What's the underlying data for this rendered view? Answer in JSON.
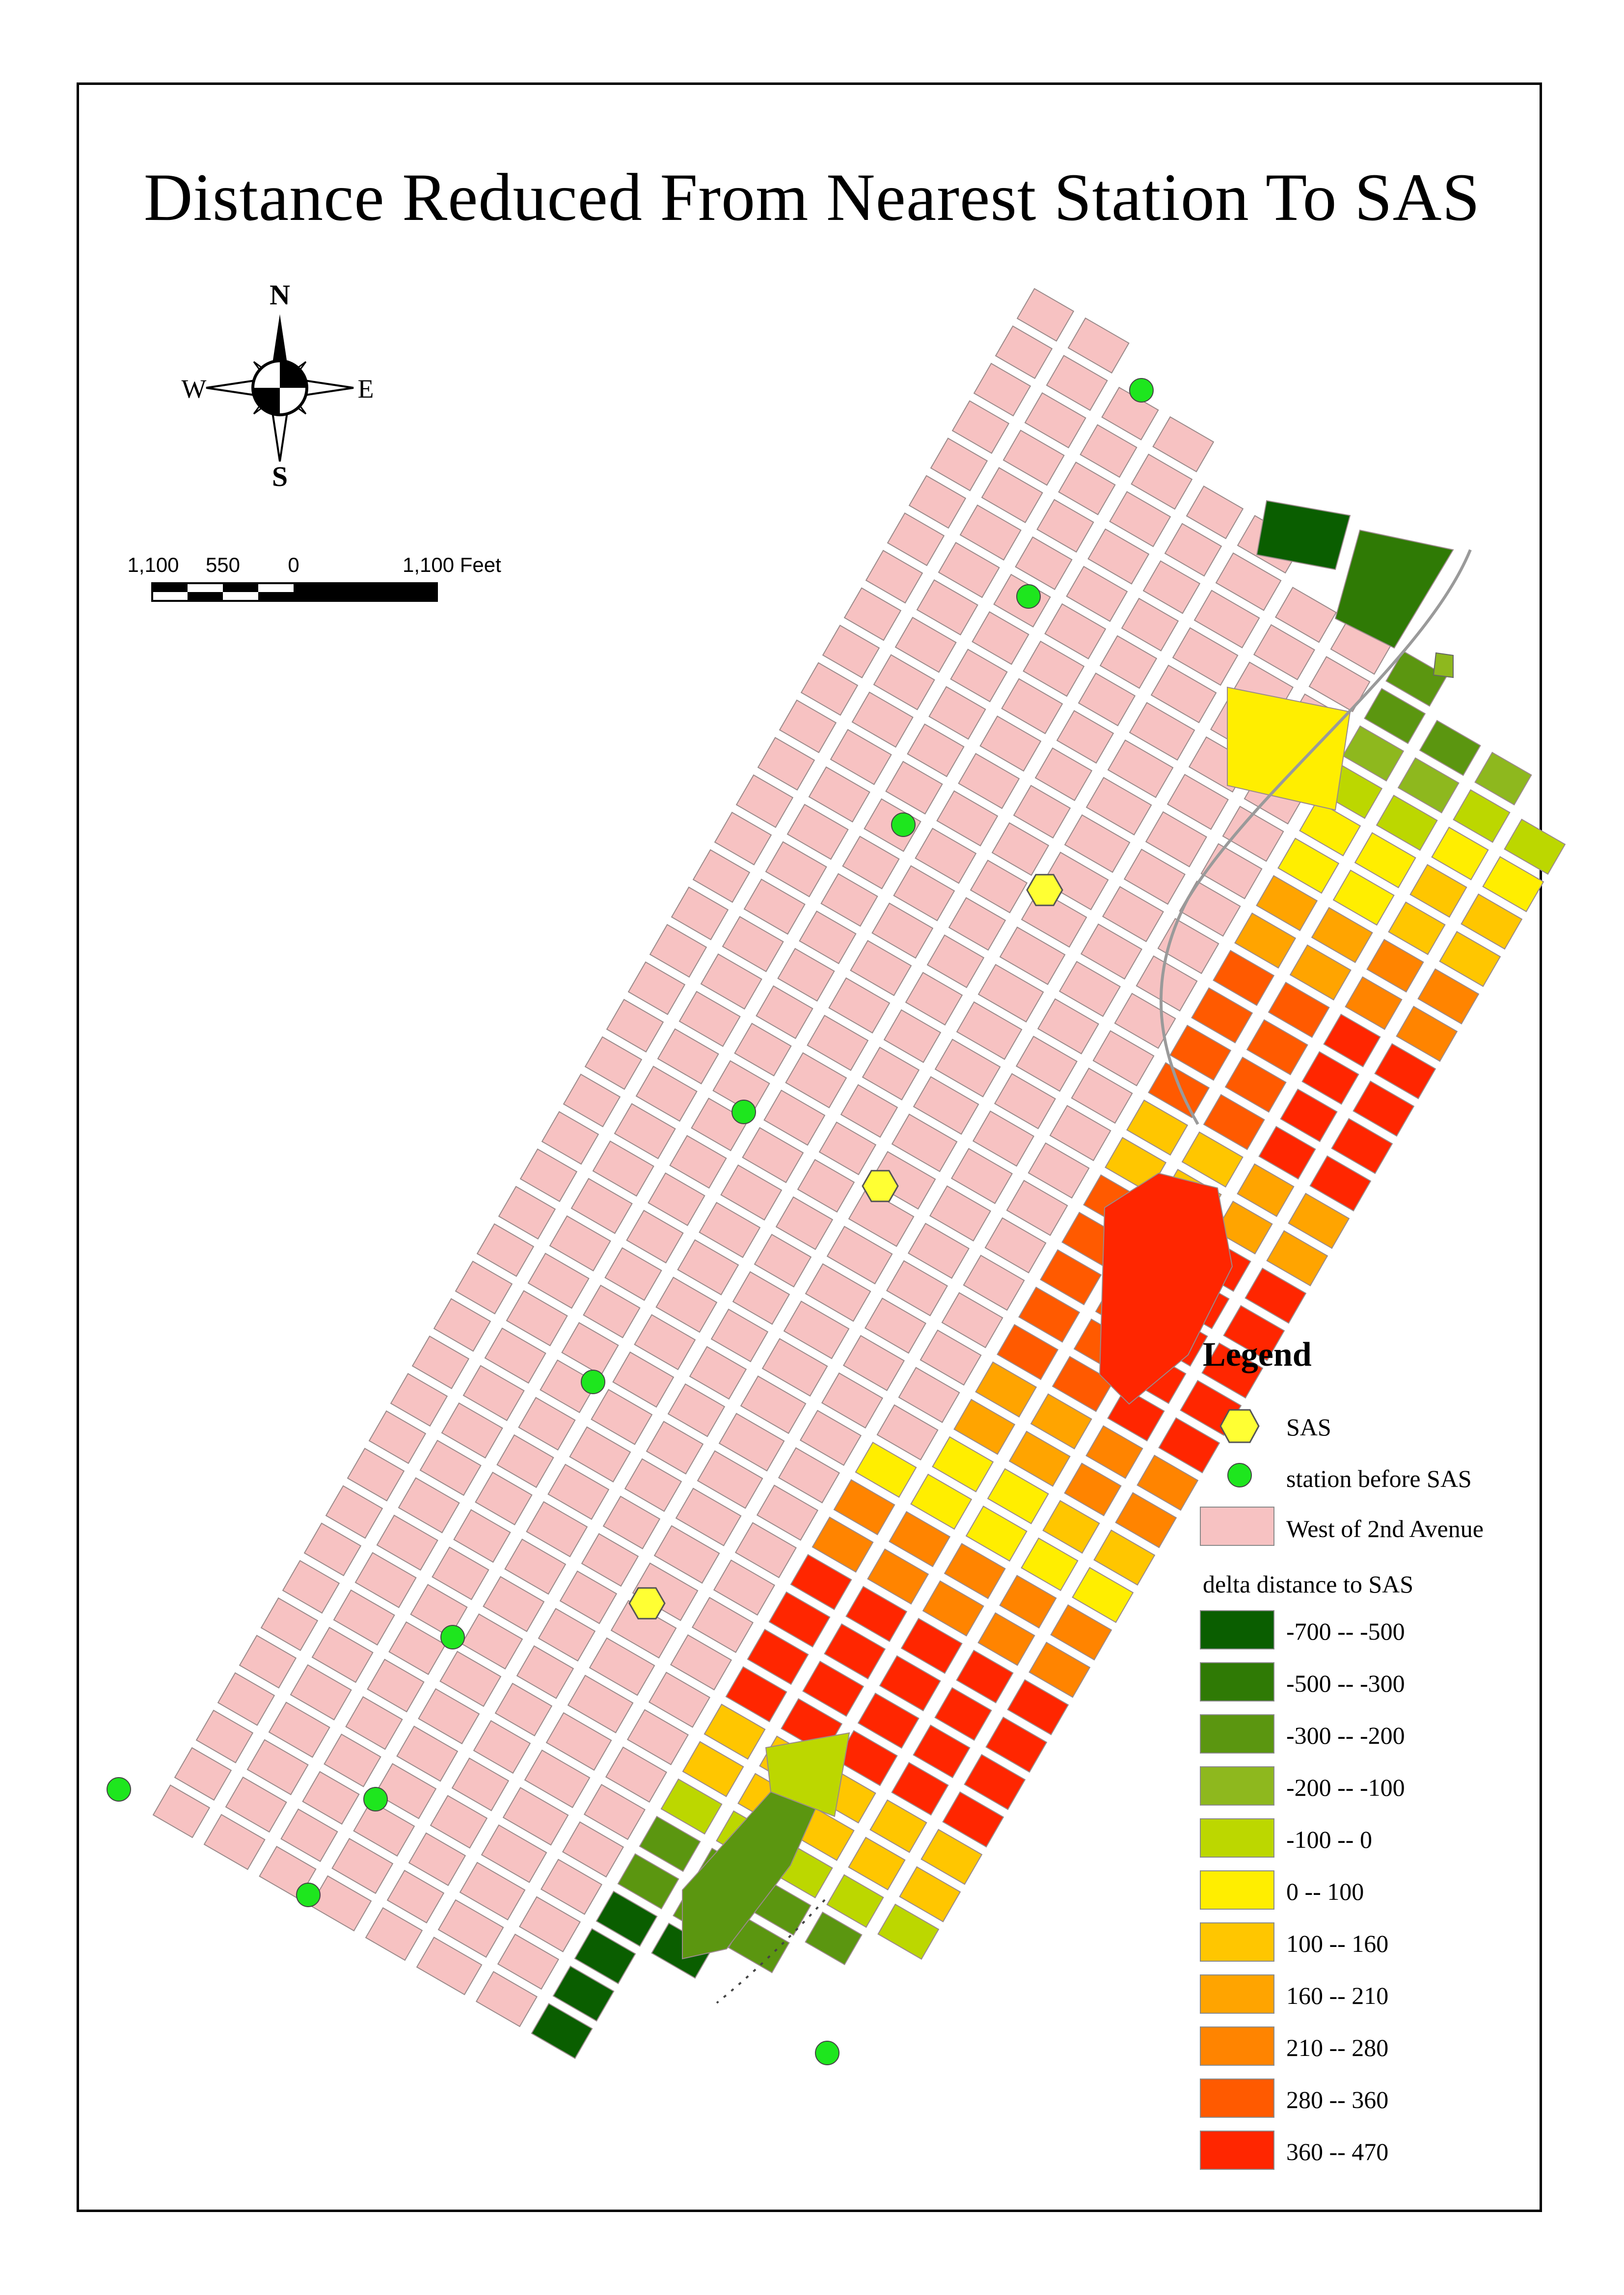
{
  "title": "Distance Reduced From Nearest Station To SAS",
  "compass": {
    "n": "N",
    "s": "S",
    "e": "E",
    "w": "W"
  },
  "scalebar": {
    "labels": [
      "1,100",
      "550",
      "0",
      "1,100 Feet"
    ]
  },
  "legend": {
    "title": "Legend",
    "sas_label": "SAS",
    "station_label": "station before SAS",
    "west_label": "West of 2nd Avenue",
    "delta_heading": "delta distance to SAS",
    "classes": [
      {
        "label": "-700 -- -500",
        "color": "#0a5e00"
      },
      {
        "label": "-500 -- -300",
        "color": "#2f7a05"
      },
      {
        "label": "-300 -- -200",
        "color": "#5b9610"
      },
      {
        "label": "-200 -- -100",
        "color": "#8eb81e"
      },
      {
        "label": "-100 -- 0",
        "color": "#bcd700"
      },
      {
        "label": "0 -- 100",
        "color": "#ffee00"
      },
      {
        "label": "100 -- 160",
        "color": "#ffc600"
      },
      {
        "label": "160 -- 210",
        "color": "#ffa400"
      },
      {
        "label": "210 -- 280",
        "color": "#ff8400"
      },
      {
        "label": "280 -- 360",
        "color": "#ff5a00"
      },
      {
        "label": "360 -- 470",
        "color": "#ff2600"
      }
    ]
  },
  "colors": {
    "west": "#f7c2c2",
    "station": "#1ee61e",
    "sas": "#ffff33",
    "water_edge": "#808080"
  }
}
